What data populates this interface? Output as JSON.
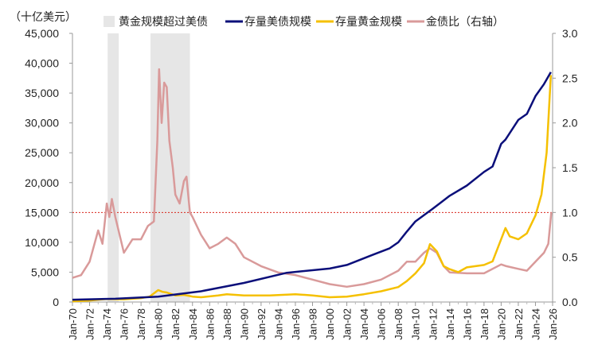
{
  "chart_data": {
    "type": "line",
    "ylabel": "（十亿美元）",
    "ylim": [
      0,
      45000
    ],
    "y2lim": [
      0,
      3.0
    ],
    "yticks": [
      "0",
      "5,000",
      "10,000",
      "15,000",
      "20,000",
      "25,000",
      "30,000",
      "35,000",
      "40,000",
      "45,000"
    ],
    "y2ticks": [
      "0.0",
      "0.5",
      "1.0",
      "1.5",
      "2.0",
      "2.5",
      "3.0"
    ],
    "xticks": [
      "Jan-70",
      "Jan-72",
      "Jan-74",
      "Jan-76",
      "Jan-78",
      "Jan-80",
      "Jan-82",
      "Jan-84",
      "Jan-86",
      "Jan-88",
      "Jan-90",
      "Jan-92",
      "Jan-94",
      "Jan-96",
      "Jan-98",
      "Jan-00",
      "Jan-02",
      "Jan-04",
      "Jan-06",
      "Jan-08",
      "Jan-10",
      "Jan-12",
      "Jan-14",
      "Jan-16",
      "Jan-18",
      "Jan-20",
      "Jan-22",
      "Jan-24",
      "Jan-26"
    ],
    "xlim": [
      1970,
      2026
    ],
    "legend_position": "top",
    "reference_line": {
      "value": 15000,
      "axis": "left",
      "color": "#d9261c",
      "style": "dashed"
    },
    "shaded_regions": {
      "name": "黄金规模超过美债",
      "color": "#e6e6e6",
      "ranges": [
        [
          1974.1,
          1975.4
        ],
        [
          1979.1,
          1983.7
        ]
      ]
    },
    "series": [
      {
        "name": "存量美债规模",
        "axis": "left",
        "color": "#0b0f7a",
        "x": [
          1970,
          1975,
          1980,
          1985,
          1990,
          1995,
          2000,
          2002,
          2005,
          2007,
          2008,
          2009,
          2010,
          2012,
          2014,
          2016,
          2018,
          2019,
          2020,
          2020.5,
          2022,
          2023,
          2024,
          2025,
          2025.8
        ],
        "y": [
          380,
          550,
          900,
          1800,
          3200,
          4900,
          5600,
          6200,
          7900,
          9000,
          10000,
          11800,
          13500,
          15600,
          17800,
          19500,
          21800,
          22700,
          26500,
          27200,
          30500,
          31500,
          34500,
          36500,
          38500
        ]
      },
      {
        "name": "存量黄金规模",
        "axis": "left",
        "color": "#f5c000",
        "x": [
          1970,
          1972,
          1974,
          1976,
          1978,
          1979,
          1980,
          1980.5,
          1981,
          1982,
          1983,
          1984,
          1985,
          1987,
          1988,
          1990,
          1993,
          1996,
          1998,
          2000,
          2002,
          2004,
          2006,
          2008,
          2009,
          2010,
          2011,
          2011.7,
          2012.5,
          2013.3,
          2014,
          2015,
          2016,
          2018,
          2019,
          2020.5,
          2021,
          2022,
          2023,
          2024,
          2024.7,
          2025.3,
          2025.8
        ],
        "y": [
          120,
          250,
          500,
          450,
          650,
          900,
          2000,
          1700,
          1600,
          1100,
          1200,
          900,
          800,
          1100,
          1300,
          1100,
          1100,
          1300,
          1100,
          800,
          900,
          1300,
          1800,
          2500,
          3500,
          4800,
          6500,
          9700,
          8500,
          6000,
          5500,
          5000,
          5800,
          6200,
          6800,
          12400,
          11000,
          10500,
          11500,
          14500,
          18000,
          25000,
          38000
        ]
      },
      {
        "name": "金债比（右轴）",
        "axis": "right",
        "color": "#d99a9a",
        "x": [
          1970,
          1971,
          1972,
          1973,
          1973.5,
          1974,
          1974.3,
          1974.6,
          1975,
          1975.5,
          1976,
          1977,
          1978,
          1978.8,
          1979.5,
          1979.9,
          1980.1,
          1980.4,
          1980.7,
          1981,
          1981.3,
          1981.7,
          1982,
          1982.5,
          1983,
          1983.3,
          1983.7,
          1984,
          1985,
          1986,
          1987,
          1988,
          1989,
          1990,
          1992,
          1994,
          1996,
          1998,
          2000,
          2002,
          2004,
          2006,
          2008,
          2009,
          2010,
          2011,
          2011.7,
          2012.5,
          2013.3,
          2014,
          2016,
          2018,
          2020,
          2020.6,
          2022,
          2023,
          2024,
          2025,
          2025.5,
          2025.85
        ],
        "y": [
          0.27,
          0.3,
          0.45,
          0.8,
          0.65,
          1.1,
          0.95,
          1.15,
          0.95,
          0.75,
          0.55,
          0.7,
          0.7,
          0.85,
          0.9,
          1.8,
          2.6,
          2.0,
          2.45,
          2.4,
          1.8,
          1.5,
          1.2,
          1.1,
          1.35,
          1.4,
          1.0,
          0.95,
          0.75,
          0.6,
          0.65,
          0.72,
          0.65,
          0.5,
          0.4,
          0.33,
          0.3,
          0.25,
          0.2,
          0.17,
          0.2,
          0.25,
          0.35,
          0.45,
          0.45,
          0.55,
          0.6,
          0.55,
          0.4,
          0.33,
          0.32,
          0.32,
          0.42,
          0.4,
          0.37,
          0.35,
          0.45,
          0.55,
          0.65,
          1.0
        ]
      }
    ]
  }
}
